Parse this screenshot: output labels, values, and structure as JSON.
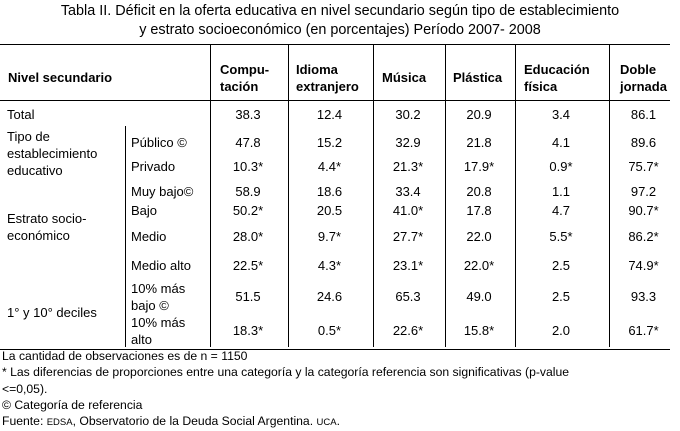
{
  "title_line1": "Tabla II. Déficit en la oferta educativa en nivel secundario según tipo de establecimiento",
  "title_line2": "y estrato socioeconómico (en porcentajes) Período 2007- 2008",
  "header": {
    "stub": "Nivel secundario",
    "columns": [
      [
        "Compu-",
        "tación"
      ],
      [
        "Idioma",
        "extranjero"
      ],
      [
        "Música"
      ],
      [
        "Plástica"
      ],
      [
        "Educación",
        "física"
      ],
      [
        "Doble",
        "jornada"
      ]
    ]
  },
  "groups": [
    [
      "Total"
    ],
    [
      "Tipo de",
      "establecimiento",
      "educativo"
    ],
    [
      "Estrato socio-",
      "económico"
    ],
    [
      "1° y 10° deciles"
    ]
  ],
  "rows": [
    {
      "label": [],
      "values": [
        "38.3",
        "12.4",
        "30.2",
        "20.9",
        "3.4",
        "86.1"
      ]
    },
    {
      "label": [
        "Público ©"
      ],
      "values": [
        "47.8",
        "15.2",
        "32.9",
        "21.8",
        "4.1",
        "89.6"
      ]
    },
    {
      "label": [
        "Privado"
      ],
      "values": [
        "10.3*",
        "4.4*",
        "21.3*",
        "17.9*",
        "0.9*",
        "75.7*"
      ]
    },
    {
      "label": [
        "Muy bajo©"
      ],
      "values": [
        "58.9",
        "18.6",
        "33.4",
        "20.8",
        "1.1",
        "97.2"
      ]
    },
    {
      "label": [
        "Bajo"
      ],
      "values": [
        "50.2*",
        "20.5",
        "41.0*",
        "17.8",
        "4.7",
        "90.7*"
      ]
    },
    {
      "label": [
        "Medio"
      ],
      "values": [
        "28.0*",
        "9.7*",
        "27.7*",
        "22.0",
        "5.5*",
        "86.2*"
      ]
    },
    {
      "label": [
        "Medio alto"
      ],
      "values": [
        "22.5*",
        "4.3*",
        "23.1*",
        "22.0*",
        "2.5",
        "74.9*"
      ]
    },
    {
      "label": [
        "10% más",
        "bajo ©"
      ],
      "values": [
        "51.5",
        "24.6",
        "65.3",
        "49.0",
        "2.5",
        "93.3"
      ]
    },
    {
      "label": [
        "10% más",
        "alto"
      ],
      "values": [
        "18.3*",
        "0.5*",
        "22.6*",
        "15.8*",
        "2.0",
        "61.7*"
      ]
    }
  ],
  "notes": {
    "n": "La cantidad de observaciones es de n = 1150",
    "sig_line1": "* Las diferencias de proporciones entre una categoría y la categoría referencia son significativas  (p-value",
    "sig_line2": "<=0,05).",
    "ref": "© Categoría de referencia",
    "source_prefix": "Fuente: ",
    "source_edsa": "EDSA",
    "source_middle": ", Observatorio de la Deuda Social Argentina. ",
    "source_uca": "UCA",
    "source_end": "."
  }
}
